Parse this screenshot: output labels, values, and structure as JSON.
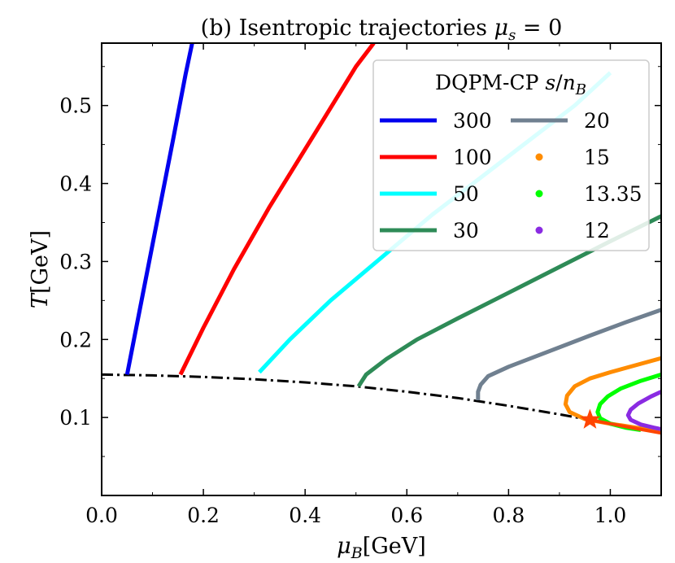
{
  "chart_data": {
    "type": "line",
    "title": "(b) Isentropic trajectories μ_s = 0",
    "title_parts": {
      "prefix": "(b) Isentropic trajectories ",
      "mu": "μ",
      "sub": "s",
      "eq": " = 0"
    },
    "xlabel": "μ_B[GeV]",
    "xlabel_parts": {
      "sym": "μ",
      "sub": "B",
      "unit": "[GeV]"
    },
    "ylabel": "T[GeV]",
    "ylabel_parts": {
      "sym": "T",
      "unit": "[GeV]"
    },
    "xlim": [
      0.0,
      1.1
    ],
    "ylim": [
      0.0,
      0.58
    ],
    "xticks": [
      "0.0",
      "0.2",
      "0.4",
      "0.6",
      "0.8",
      "1.0"
    ],
    "xtick_values": [
      0.0,
      0.2,
      0.4,
      0.6,
      0.8,
      1.0
    ],
    "yticks": [
      "0.1",
      "0.2",
      "0.3",
      "0.4",
      "0.5"
    ],
    "ytick_values": [
      0.1,
      0.2,
      0.3,
      0.4,
      0.5
    ],
    "grid": false,
    "legend": {
      "title": "DQPM-CP s/n_B",
      "title_parts": {
        "prefix": "DQPM-CP ",
        "s": "s",
        "slash": "/",
        "n": "n",
        "sub": "B"
      },
      "placement": "top-right",
      "entries": [
        {
          "label": "300",
          "color": "#0000ee",
          "marker": "line"
        },
        {
          "label": "100",
          "color": "#ff0000",
          "marker": "line"
        },
        {
          "label": "50",
          "color": "#00ffff",
          "marker": "line"
        },
        {
          "label": "30",
          "color": "#2e8b57",
          "marker": "line"
        },
        {
          "label": "20",
          "color": "#708090",
          "marker": "line"
        },
        {
          "label": "15",
          "color": "#ff8c00",
          "marker": "dot"
        },
        {
          "label": "13.35",
          "color": "#00ff00",
          "marker": "dot"
        },
        {
          "label": "12",
          "color": "#8a2be2",
          "marker": "dot"
        }
      ]
    },
    "series": [
      {
        "name": "300",
        "color": "#0000ee",
        "x": [
          0.05,
          0.08,
          0.11,
          0.14,
          0.165,
          0.178
        ],
        "y": [
          0.155,
          0.255,
          0.355,
          0.455,
          0.54,
          0.58
        ]
      },
      {
        "name": "100",
        "color": "#ff0000",
        "x": [
          0.155,
          0.2,
          0.26,
          0.33,
          0.42,
          0.5,
          0.535
        ],
        "y": [
          0.155,
          0.215,
          0.29,
          0.37,
          0.465,
          0.55,
          0.58
        ]
      },
      {
        "name": "50",
        "color": "#00ffff",
        "x": [
          0.31,
          0.37,
          0.45,
          0.55,
          0.65,
          0.75,
          0.85,
          0.93,
          1.0
        ],
        "y": [
          0.158,
          0.2,
          0.25,
          0.305,
          0.36,
          0.41,
          0.46,
          0.5,
          0.542
        ]
      },
      {
        "name": "30",
        "color": "#2e8b57",
        "x": [
          0.505,
          0.52,
          0.56,
          0.62,
          0.7,
          0.8,
          0.9,
          1.0,
          1.1
        ],
        "y": [
          0.14,
          0.155,
          0.175,
          0.2,
          0.227,
          0.26,
          0.293,
          0.326,
          0.358
        ]
      },
      {
        "name": "20",
        "color": "#708090",
        "x": [
          0.74,
          0.74,
          0.745,
          0.76,
          0.8,
          0.88,
          0.96,
          1.03,
          1.1
        ],
        "y": [
          0.122,
          0.133,
          0.142,
          0.153,
          0.165,
          0.185,
          0.205,
          0.222,
          0.238
        ]
      },
      {
        "name": "15",
        "color": "#ff8c00",
        "x": [
          1.1,
          1.05,
          1.0,
          0.96,
          0.93,
          0.915,
          0.912,
          0.92,
          0.95,
          1.0,
          1.05,
          1.1
        ],
        "y": [
          0.176,
          0.167,
          0.158,
          0.15,
          0.14,
          0.128,
          0.117,
          0.107,
          0.098,
          0.092,
          0.087,
          0.082
        ]
      },
      {
        "name": "13.35",
        "color": "#00ff00",
        "x": [
          1.1,
          1.06,
          1.02,
          0.995,
          0.98,
          0.975,
          0.98,
          1.0,
          1.03,
          1.06
        ],
        "y": [
          0.155,
          0.147,
          0.137,
          0.127,
          0.117,
          0.107,
          0.099,
          0.092,
          0.087,
          0.084
        ]
      },
      {
        "name": "12",
        "color": "#8a2be2",
        "x": [
          1.1,
          1.08,
          1.055,
          1.04,
          1.035,
          1.04,
          1.06,
          1.085,
          1.1
        ],
        "y": [
          0.133,
          0.127,
          0.118,
          0.11,
          0.103,
          0.097,
          0.091,
          0.087,
          0.085
        ]
      }
    ],
    "phase_boundary": {
      "color": "#000000",
      "style": "dash-dot",
      "x": [
        0.0,
        0.1,
        0.2,
        0.3,
        0.4,
        0.5,
        0.6,
        0.7,
        0.8,
        0.9,
        0.96
      ],
      "y": [
        0.155,
        0.154,
        0.152,
        0.149,
        0.145,
        0.14,
        0.133,
        0.125,
        0.115,
        0.104,
        0.097
      ]
    },
    "first_order_line": {
      "color": "#ff4500",
      "x": [
        0.96,
        1.0,
        1.05,
        1.1
      ],
      "y": [
        0.097,
        0.092,
        0.086,
        0.08
      ]
    },
    "critical_point": {
      "color": "#ff4500",
      "marker": "star",
      "x": 0.96,
      "y": 0.097
    }
  }
}
